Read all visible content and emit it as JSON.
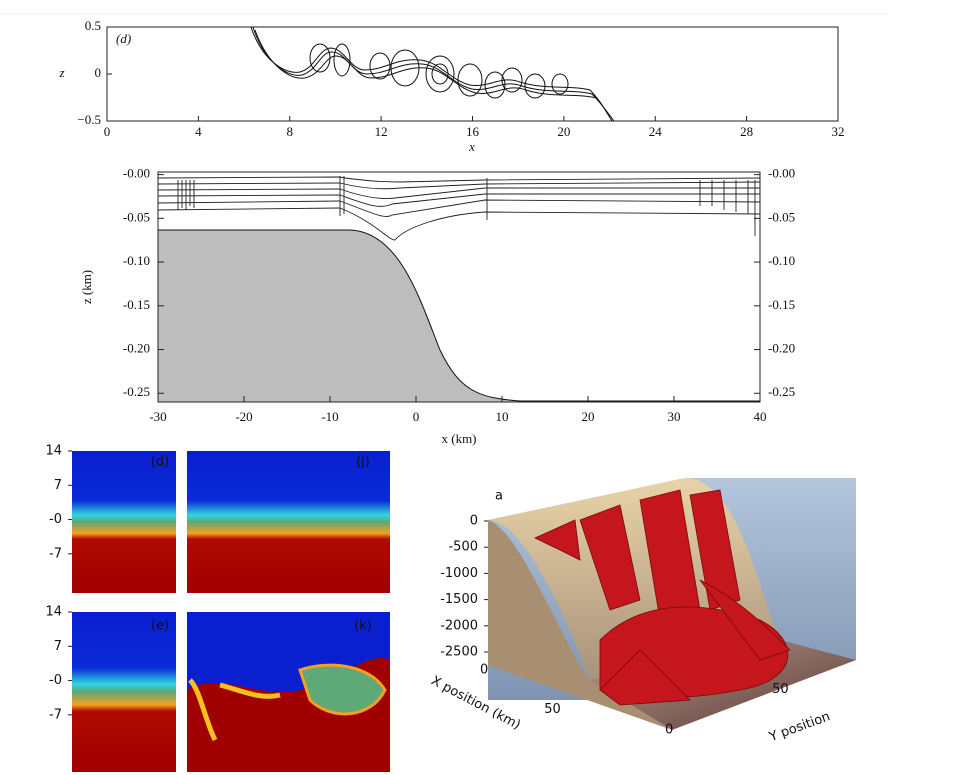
{
  "panels": [
    {
      "label": "(d)",
      "xlabel": "x",
      "ylabel": "z",
      "xlim": [
        0,
        32
      ],
      "ylim": [
        -0.5,
        0.5
      ],
      "xticks": [
        0,
        4,
        8,
        12,
        16,
        20,
        24,
        28,
        32
      ],
      "yticks": [
        {
          "value": -0.5,
          "label": "−0.5"
        },
        0,
        0.5
      ]
    },
    {
      "xlabel": "x (km)",
      "ylabel": "z (km)",
      "xlim": [
        -30,
        40
      ],
      "ylim": [
        -0.26,
        0.003
      ],
      "xticks": [
        -30,
        -20,
        -10,
        0,
        10,
        20,
        30,
        40
      ],
      "yticks": [
        {
          "value": 0,
          "label": "-0.00"
        },
        -0.05,
        {
          "value": -0.1,
          "label": "-0.10"
        },
        -0.15,
        {
          "value": -0.2,
          "label": "-0.20"
        },
        -0.25
      ]
    },
    {
      "ylim": [
        -15,
        14
      ],
      "yticks": [
        14,
        7,
        {
          "value": 0,
          "label": "-0"
        },
        -7
      ],
      "subpanels": [
        "(d)",
        "(j)",
        "(e)",
        "(k)"
      ]
    },
    {
      "label": "a",
      "xlabel": "X position (km)",
      "ylabel": "Y position",
      "zlim": [
        -2500,
        0
      ],
      "zticks": [
        0,
        -500,
        -1000,
        -1500,
        -2000,
        -2500
      ],
      "xlim": [
        0,
        70
      ],
      "xticks": [
        0,
        50
      ],
      "ylim": [
        0,
        70
      ],
      "yticks": [
        0,
        50
      ]
    }
  ]
}
